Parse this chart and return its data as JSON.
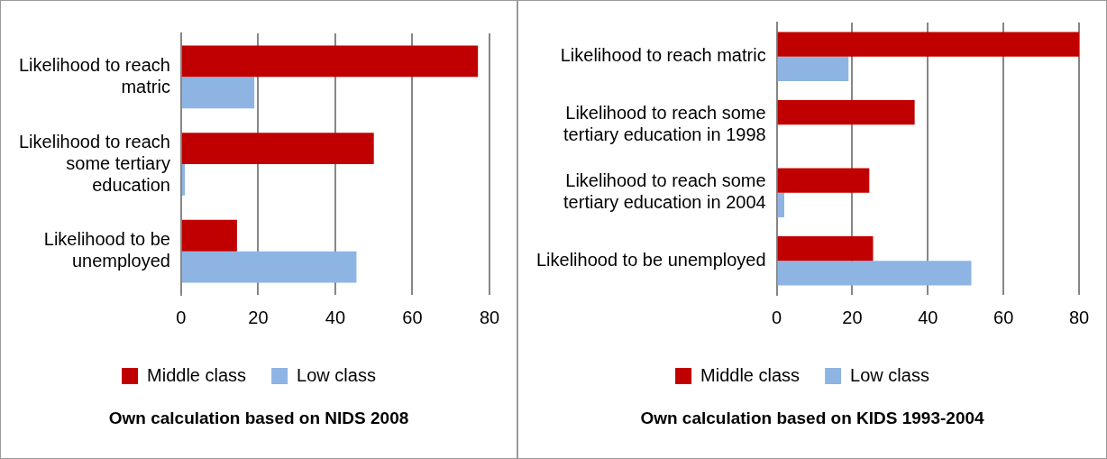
{
  "chart_data": [
    {
      "type": "bar",
      "orientation": "horizontal",
      "categories": [
        "Likelihood to reach matric",
        "Likelihood to reach some tertiary education",
        "Likelihood to be unemployed"
      ],
      "series": [
        {
          "name": "Middle class",
          "color": "#c00000",
          "values": [
            77,
            50,
            14.5
          ]
        },
        {
          "name": "Low class",
          "color": "#8eb4e3",
          "values": [
            19,
            1,
            45.5
          ]
        }
      ],
      "xlim": [
        0,
        80
      ],
      "xticks": [
        0,
        20,
        40,
        60,
        80
      ],
      "grid": "x",
      "legend": "bottom",
      "annotations": [
        "Own calculation based on NIDS 2008"
      ]
    },
    {
      "type": "bar",
      "orientation": "horizontal",
      "categories": [
        "Likelihood to reach matric",
        "Likelihood to reach some tertiary education in 1998",
        "Likelihood to reach some tertiary education in 2004",
        "Likelihood to be unemployed"
      ],
      "series": [
        {
          "name": "Middle class",
          "color": "#c00000",
          "values": [
            80,
            36.5,
            24.5,
            25.5
          ]
        },
        {
          "name": "Low class",
          "color": "#8eb4e3",
          "values": [
            19,
            null,
            2,
            51.5
          ]
        }
      ],
      "xlim": [
        0,
        80
      ],
      "xticks": [
        0,
        20,
        40,
        60,
        80
      ],
      "grid": "x",
      "legend": "bottom",
      "annotations": [
        "Own calculation based on KIDS 1993-2004"
      ]
    }
  ]
}
